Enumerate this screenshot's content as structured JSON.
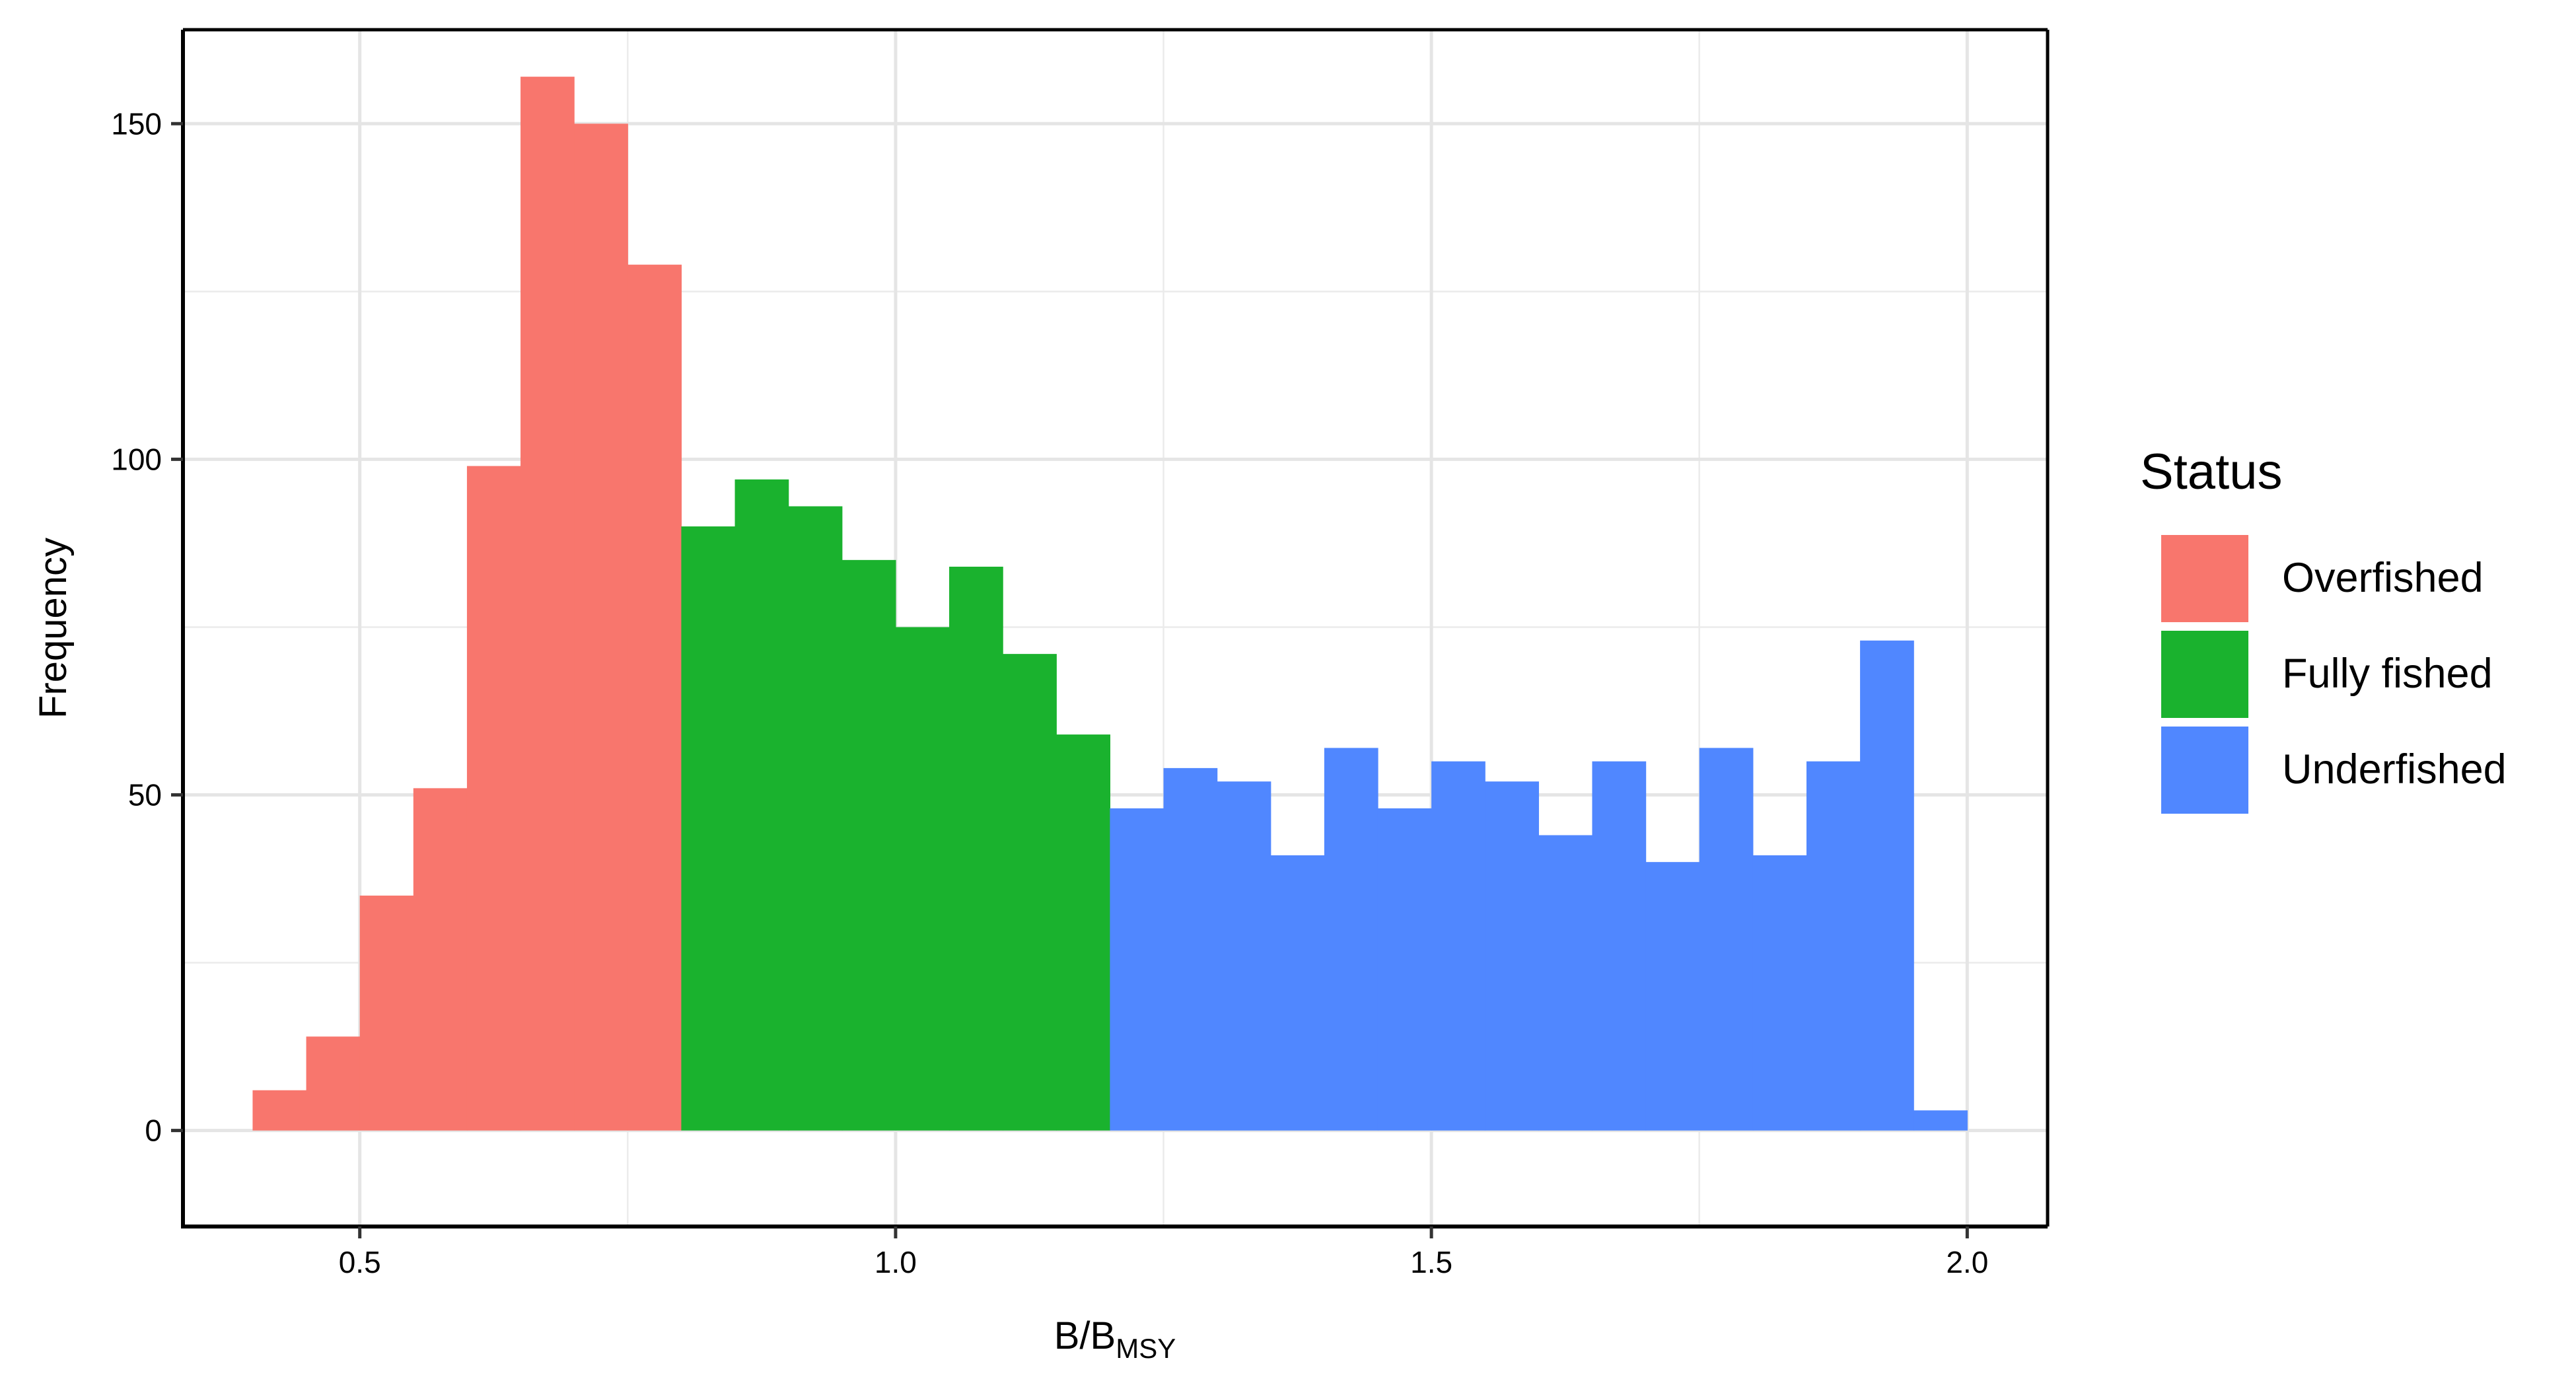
{
  "chart_data": {
    "type": "bar",
    "xlabel": "B/B",
    "xlabel_subscript": "MSY",
    "ylabel": "Frequency",
    "xlim": [
      0.335,
      2.075
    ],
    "ylim": [
      -14.3,
      164
    ],
    "x_ticks": [
      0.5,
      1.0,
      1.5,
      2.0
    ],
    "x_tick_labels": [
      "0.5",
      "1.0",
      "1.5",
      "2.0"
    ],
    "y_ticks": [
      0,
      50,
      100,
      150
    ],
    "y_tick_labels": [
      "0",
      "50",
      "100",
      "150"
    ],
    "x_minor": [
      0.75,
      1.25,
      1.75
    ],
    "y_minor": [
      25,
      75,
      125
    ],
    "grid": true,
    "legend_position": "right",
    "bin_width": 0.05,
    "legend": {
      "title": "Status",
      "entries": [
        {
          "key": "overfished",
          "label": "Overfished",
          "color": "#F8766D"
        },
        {
          "key": "fully",
          "label": "Fully fished",
          "color": "#1AB22E"
        },
        {
          "key": "underfished",
          "label": "Underfished",
          "color": "#5087FF"
        }
      ]
    },
    "series": [
      {
        "key": "overfished",
        "color": "#F8766D",
        "bins": [
          {
            "x0": 0.4,
            "x1": 0.45,
            "count": 6
          },
          {
            "x0": 0.45,
            "x1": 0.5,
            "count": 14
          },
          {
            "x0": 0.5,
            "x1": 0.55,
            "count": 35
          },
          {
            "x0": 0.55,
            "x1": 0.6,
            "count": 51
          },
          {
            "x0": 0.6,
            "x1": 0.65,
            "count": 99
          },
          {
            "x0": 0.65,
            "x1": 0.7,
            "count": 157
          },
          {
            "x0": 0.7,
            "x1": 0.75,
            "count": 150
          },
          {
            "x0": 0.75,
            "x1": 0.8,
            "count": 129
          }
        ]
      },
      {
        "key": "fully",
        "color": "#1AB22E",
        "bins": [
          {
            "x0": 0.8,
            "x1": 0.85,
            "count": 90
          },
          {
            "x0": 0.85,
            "x1": 0.9,
            "count": 97
          },
          {
            "x0": 0.9,
            "x1": 0.95,
            "count": 93
          },
          {
            "x0": 0.95,
            "x1": 1.0,
            "count": 85
          },
          {
            "x0": 1.0,
            "x1": 1.05,
            "count": 75
          },
          {
            "x0": 1.05,
            "x1": 1.1,
            "count": 84
          },
          {
            "x0": 1.1,
            "x1": 1.15,
            "count": 71
          },
          {
            "x0": 1.15,
            "x1": 1.2,
            "count": 59
          }
        ]
      },
      {
        "key": "underfished",
        "color": "#5087FF",
        "bins": [
          {
            "x0": 1.2,
            "x1": 1.25,
            "count": 48
          },
          {
            "x0": 1.25,
            "x1": 1.3,
            "count": 54
          },
          {
            "x0": 1.3,
            "x1": 1.35,
            "count": 52
          },
          {
            "x0": 1.35,
            "x1": 1.4,
            "count": 41
          },
          {
            "x0": 1.4,
            "x1": 1.45,
            "count": 57
          },
          {
            "x0": 1.45,
            "x1": 1.5,
            "count": 48
          },
          {
            "x0": 1.5,
            "x1": 1.55,
            "count": 55
          },
          {
            "x0": 1.55,
            "x1": 1.6,
            "count": 52
          },
          {
            "x0": 1.6,
            "x1": 1.65,
            "count": 44
          },
          {
            "x0": 1.65,
            "x1": 1.7,
            "count": 55
          },
          {
            "x0": 1.7,
            "x1": 1.75,
            "count": 40
          },
          {
            "x0": 1.75,
            "x1": 1.8,
            "count": 57
          },
          {
            "x0": 1.8,
            "x1": 1.85,
            "count": 41
          },
          {
            "x0": 1.85,
            "x1": 1.9,
            "count": 55
          },
          {
            "x0": 1.9,
            "x1": 1.95,
            "count": 73
          },
          {
            "x0": 1.95,
            "x1": 2.0,
            "count": 3
          }
        ]
      }
    ]
  }
}
